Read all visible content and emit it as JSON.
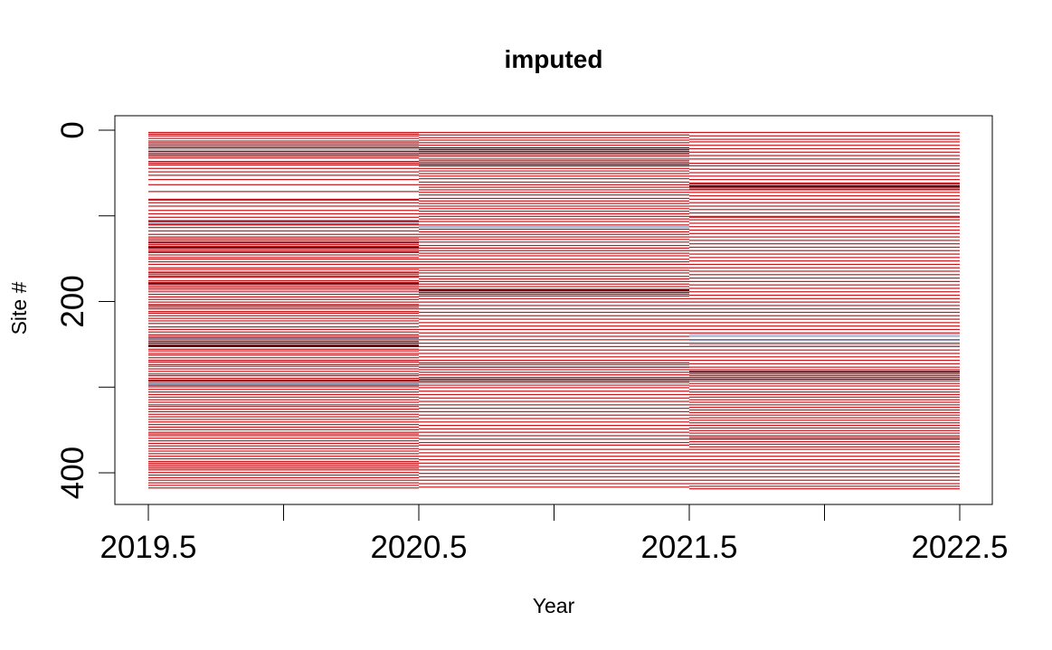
{
  "chart_data": {
    "type": "heatmap",
    "title": "imputed",
    "xlabel": "Year",
    "ylabel": "Site #",
    "x_ticks": [
      2019.5,
      2020,
      2020.5,
      2021,
      2021.5,
      2022,
      2022.5
    ],
    "x_tick_labels": [
      "2019.5",
      "",
      "2020.5",
      "",
      "2021.5",
      "",
      "2022.5"
    ],
    "y_ticks": [
      0,
      100,
      200,
      300,
      400
    ],
    "y_tick_labels": [
      "0",
      "",
      "200",
      "",
      "400"
    ],
    "xlim": [
      2019.5,
      2022.5
    ],
    "ylim": [
      420,
      0
    ],
    "n_sites": 420,
    "columns": [
      {
        "x_start": 2019.5,
        "x_end": 2020.5
      },
      {
        "x_start": 2020.5,
        "x_end": 2021.5
      },
      {
        "x_start": 2021.5,
        "x_end": 2022.5
      }
    ],
    "palette": {
      "very_high": "#67000d",
      "high": "#c8171c",
      "low": "#ffffff",
      "negative": "#9bb3d1"
    },
    "rows_note_visible": false,
    "column_rows": [
      {
        "dark": [
          20,
          24,
          28,
          36,
          106,
          131,
          136,
          137,
          142,
          178,
          179,
          242,
          246,
          248,
          251,
          252,
          292,
          297
        ],
        "red": [
          2,
          4,
          6,
          9,
          12,
          14,
          16,
          18,
          26,
          30,
          32,
          38,
          40,
          44,
          48,
          52,
          57,
          63,
          71,
          80,
          81,
          84,
          88,
          93,
          97,
          101,
          105,
          109,
          110,
          113,
          117,
          121,
          124,
          126,
          128,
          130,
          133,
          135,
          139,
          141,
          145,
          148,
          150,
          153,
          156,
          160,
          162,
          165,
          166,
          168,
          170,
          171,
          175,
          177,
          181,
          183,
          185,
          188,
          191,
          194,
          197,
          200,
          203,
          204,
          206,
          208,
          211,
          213,
          216,
          219,
          222,
          225,
          229,
          232,
          235,
          238,
          240,
          244,
          250,
          255,
          257,
          260,
          262,
          265,
          268,
          270,
          273,
          275,
          278,
          281,
          284,
          286,
          289,
          291,
          294,
          299,
          302,
          305,
          308,
          311,
          314,
          317,
          320,
          322,
          325,
          328,
          331,
          334,
          337,
          340,
          343,
          346,
          349,
          352,
          354,
          356,
          359,
          362,
          365,
          368,
          371,
          374,
          377,
          380,
          383,
          386,
          388,
          390,
          392,
          394,
          396,
          399,
          402,
          405,
          408,
          411,
          414,
          417
        ],
        "blue": [
          22,
          108,
          187,
          243,
          295,
          296
        ]
      },
      {
        "dark": [
          20,
          22,
          24,
          26,
          39,
          41,
          186,
          187,
          189,
          276,
          290,
          292
        ],
        "red": [
          2,
          5,
          8,
          11,
          14,
          17,
          28,
          30,
          33,
          35,
          37,
          44,
          47,
          50,
          53,
          56,
          60,
          63,
          66,
          69,
          72,
          75,
          79,
          82,
          85,
          88,
          91,
          94,
          97,
          100,
          103,
          106,
          110,
          115,
          118,
          121,
          124,
          127,
          130,
          134,
          137,
          140,
          143,
          146,
          150,
          153,
          156,
          160,
          163,
          166,
          170,
          173,
          176,
          179,
          182,
          185,
          191,
          193,
          196,
          200,
          204,
          208,
          212,
          216,
          220,
          224,
          228,
          232,
          236,
          240,
          244,
          248,
          252,
          256,
          260,
          264,
          268,
          271,
          273,
          279,
          282,
          285,
          288,
          294,
          297,
          300,
          304,
          308,
          312,
          316,
          320,
          324,
          328,
          332,
          336,
          340,
          344,
          348,
          352,
          356,
          360,
          364,
          367,
          372,
          376,
          380,
          384,
          388,
          392,
          396,
          400,
          404,
          408,
          412,
          416
        ],
        "blue": [
          112,
          113
        ]
      },
      {
        "dark": [
          64,
          65,
          66,
          281,
          282,
          290,
          360
        ],
        "red": [
          2,
          6,
          10,
          13,
          17,
          21,
          25,
          29,
          33,
          38,
          41,
          45,
          49,
          53,
          57,
          61,
          62,
          68,
          69,
          72,
          76,
          80,
          84,
          88,
          92,
          96,
          100,
          101,
          104,
          108,
          112,
          116,
          120,
          124,
          128,
          132,
          136,
          140,
          144,
          148,
          152,
          156,
          160,
          164,
          168,
          172,
          176,
          180,
          184,
          188,
          192,
          196,
          200,
          204,
          208,
          212,
          216,
          220,
          224,
          228,
          232,
          236,
          240,
          244,
          248,
          252,
          256,
          260,
          264,
          268,
          272,
          276,
          279,
          284,
          286,
          288,
          292,
          295,
          298,
          302,
          305,
          308,
          311,
          314,
          317,
          320,
          323,
          326,
          329,
          332,
          335,
          338,
          341,
          344,
          347,
          350,
          353,
          356,
          358,
          363,
          366,
          369,
          372,
          376,
          380,
          384,
          388,
          392,
          396,
          400,
          404,
          408,
          412,
          415,
          418
        ],
        "blue": [
          238,
          240,
          245,
          250
        ]
      }
    ]
  }
}
